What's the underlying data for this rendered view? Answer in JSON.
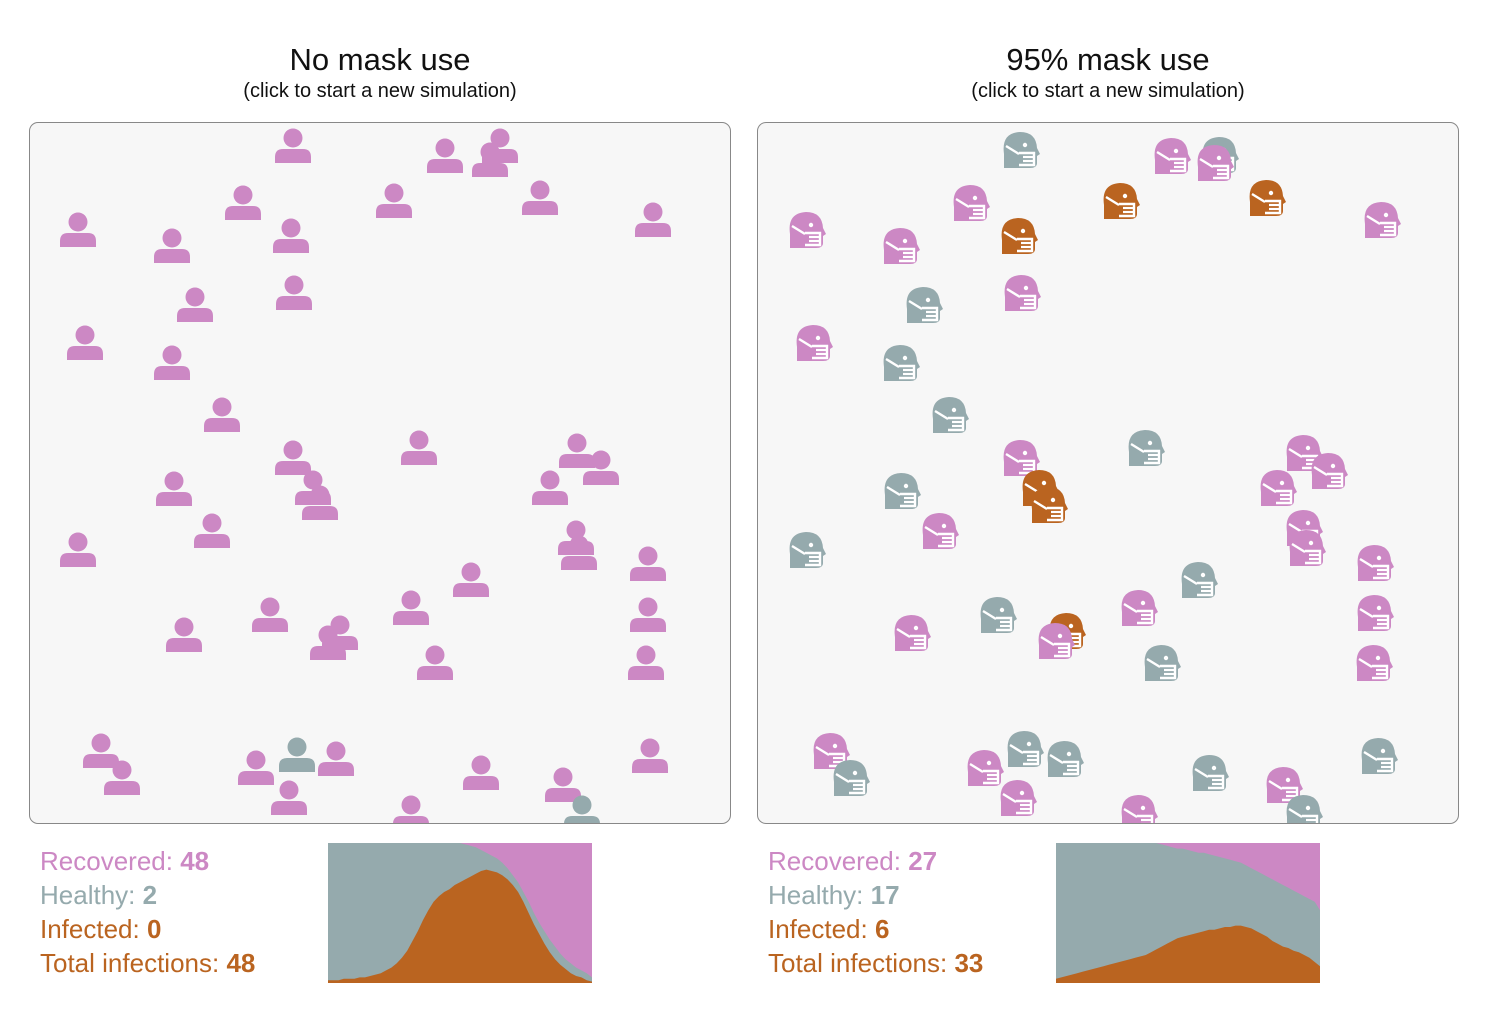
{
  "colors": {
    "recovered": "#cc88c4",
    "healthy": "#95aaad",
    "infected": "#ba6420",
    "panel_bg": "#f7f7f7",
    "panel_border": "#888888"
  },
  "icons": {
    "no_mask": "person-icon",
    "mask": "masked-head-icon"
  },
  "panels": [
    {
      "title": "No mask use",
      "subtitle": "(click to start a new simulation)",
      "stats": {
        "recovered_label": "Recovered: ",
        "recovered": "48",
        "healthy_label": "Healthy: ",
        "healthy": "2",
        "infected_label": "Infected: ",
        "infected": "0",
        "total_label": "Total infections: ",
        "total": "48"
      },
      "chart_data": {
        "type": "area",
        "stacked": true,
        "normalized": true,
        "series_order": [
          "infected",
          "healthy",
          "recovered"
        ],
        "infected": [
          0.02,
          0.02,
          0.02,
          0.03,
          0.03,
          0.03,
          0.04,
          0.04,
          0.05,
          0.06,
          0.07,
          0.09,
          0.11,
          0.14,
          0.18,
          0.23,
          0.3,
          0.37,
          0.45,
          0.52,
          0.58,
          0.62,
          0.65,
          0.67,
          0.7,
          0.72,
          0.74,
          0.76,
          0.78,
          0.8,
          0.81,
          0.8,
          0.79,
          0.77,
          0.74,
          0.7,
          0.65,
          0.58,
          0.5,
          0.42,
          0.35,
          0.28,
          0.22,
          0.17,
          0.13,
          0.1,
          0.07,
          0.05,
          0.04,
          0.02,
          0.01
        ],
        "recovered": [
          0,
          0,
          0,
          0,
          0,
          0,
          0,
          0,
          0,
          0,
          0,
          0,
          0,
          0,
          0,
          0,
          0,
          0,
          0,
          0,
          0,
          0,
          0,
          0,
          0,
          0,
          0.01,
          0.02,
          0.03,
          0.05,
          0.07,
          0.09,
          0.11,
          0.14,
          0.18,
          0.23,
          0.28,
          0.35,
          0.42,
          0.5,
          0.57,
          0.63,
          0.69,
          0.74,
          0.79,
          0.83,
          0.86,
          0.89,
          0.91,
          0.93,
          0.96
        ]
      }
    },
    {
      "title": "95% mask use",
      "subtitle": "(click to start a new simulation)",
      "stats": {
        "recovered_label": "Recovered: ",
        "recovered": "27",
        "healthy_label": "Healthy: ",
        "healthy": "17",
        "infected_label": "Infected: ",
        "infected": "6",
        "total_label": "Total infections: ",
        "total": "33"
      },
      "chart_data": {
        "type": "area",
        "stacked": true,
        "normalized": true,
        "series_order": [
          "infected",
          "healthy",
          "recovered"
        ],
        "infected": [
          0.03,
          0.04,
          0.05,
          0.06,
          0.07,
          0.08,
          0.09,
          0.1,
          0.11,
          0.12,
          0.13,
          0.14,
          0.15,
          0.16,
          0.17,
          0.18,
          0.19,
          0.2,
          0.22,
          0.24,
          0.26,
          0.28,
          0.3,
          0.32,
          0.33,
          0.34,
          0.35,
          0.36,
          0.37,
          0.38,
          0.38,
          0.39,
          0.4,
          0.4,
          0.41,
          0.41,
          0.4,
          0.39,
          0.37,
          0.35,
          0.33,
          0.3,
          0.28,
          0.26,
          0.25,
          0.23,
          0.22,
          0.2,
          0.18,
          0.15,
          0.12
        ],
        "recovered": [
          0,
          0,
          0,
          0,
          0,
          0,
          0,
          0,
          0,
          0,
          0,
          0,
          0,
          0,
          0,
          0,
          0,
          0,
          0,
          0,
          0.01,
          0.02,
          0.03,
          0.04,
          0.04,
          0.05,
          0.06,
          0.07,
          0.07,
          0.08,
          0.09,
          0.1,
          0.11,
          0.12,
          0.13,
          0.14,
          0.16,
          0.18,
          0.2,
          0.22,
          0.24,
          0.26,
          0.28,
          0.3,
          0.32,
          0.34,
          0.36,
          0.38,
          0.4,
          0.42,
          0.48
        ]
      }
    }
  ]
}
